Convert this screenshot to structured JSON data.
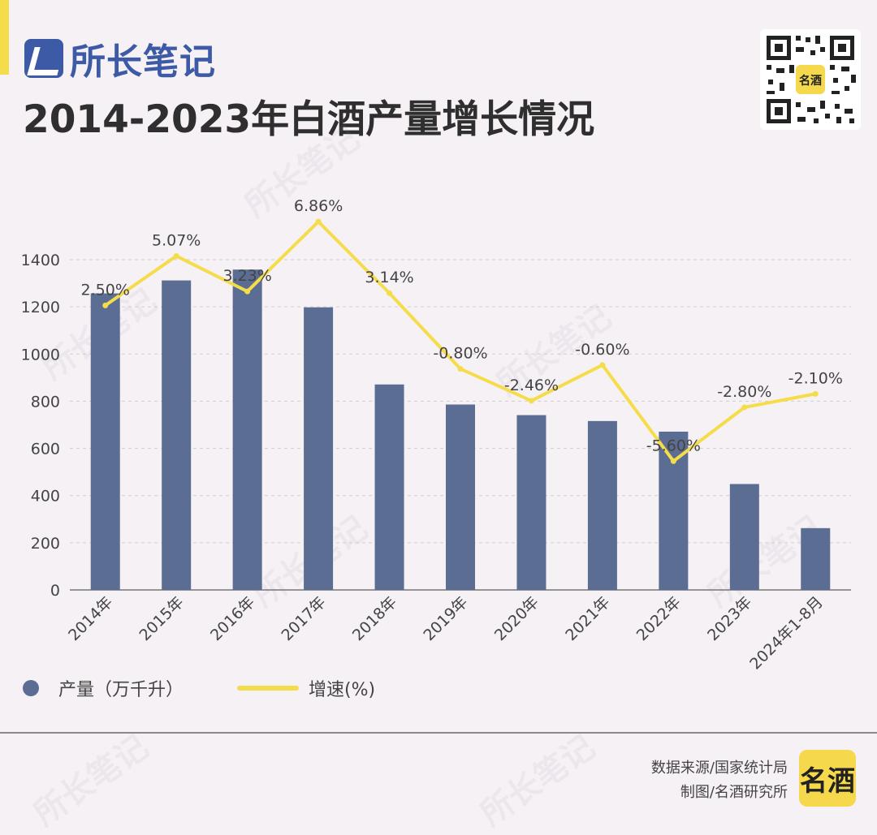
{
  "header": {
    "brand": "所长笔记",
    "title": "2014-2023年白酒产量增长情况"
  },
  "qr_center_label": "名酒",
  "chart_data": {
    "type": "bar",
    "categories": [
      "2014年",
      "2015年",
      "2016年",
      "2017年",
      "2018年",
      "2019年",
      "2020年",
      "2021年",
      "2022年",
      "2023年",
      "2024年1-8月"
    ],
    "series": [
      {
        "name": "产量（万千升）",
        "type": "bar",
        "values": [
          1257,
          1312,
          1358,
          1198,
          871,
          786,
          741,
          716,
          671,
          449,
          262
        ],
        "color": "#5b6d93"
      },
      {
        "name": "增速(%)",
        "type": "line",
        "values": [
          2.5,
          5.07,
          3.23,
          6.86,
          3.14,
          -0.8,
          -2.46,
          -0.6,
          -5.6,
          -2.8,
          -2.1
        ],
        "labels": [
          "2.50%",
          "5.07%",
          "3.23%",
          "6.86%",
          "3.14%",
          "-0.80%",
          "-2.46%",
          "-0.60%",
          "-5.60%",
          "-2.80%",
          "-2.10%"
        ],
        "color": "#f5dc4a"
      }
    ],
    "yticks": [
      "0",
      "200",
      "400",
      "600",
      "800",
      "1000",
      "1200",
      "1400"
    ],
    "ylim": [
      0,
      1400
    ],
    "grid": true,
    "legend_position": "bottom-left"
  },
  "legend": {
    "bar_label": "产量（万千升）",
    "line_label": "增速(%)"
  },
  "footer": {
    "source": "数据来源/国家统计局",
    "credit": "制图/名酒研究所",
    "logo_text": "名酒"
  },
  "colors": {
    "bar": "#5b6d93",
    "line": "#f5dc4a",
    "accent": "#f5dc4a",
    "brand": "#3d5aa6"
  }
}
